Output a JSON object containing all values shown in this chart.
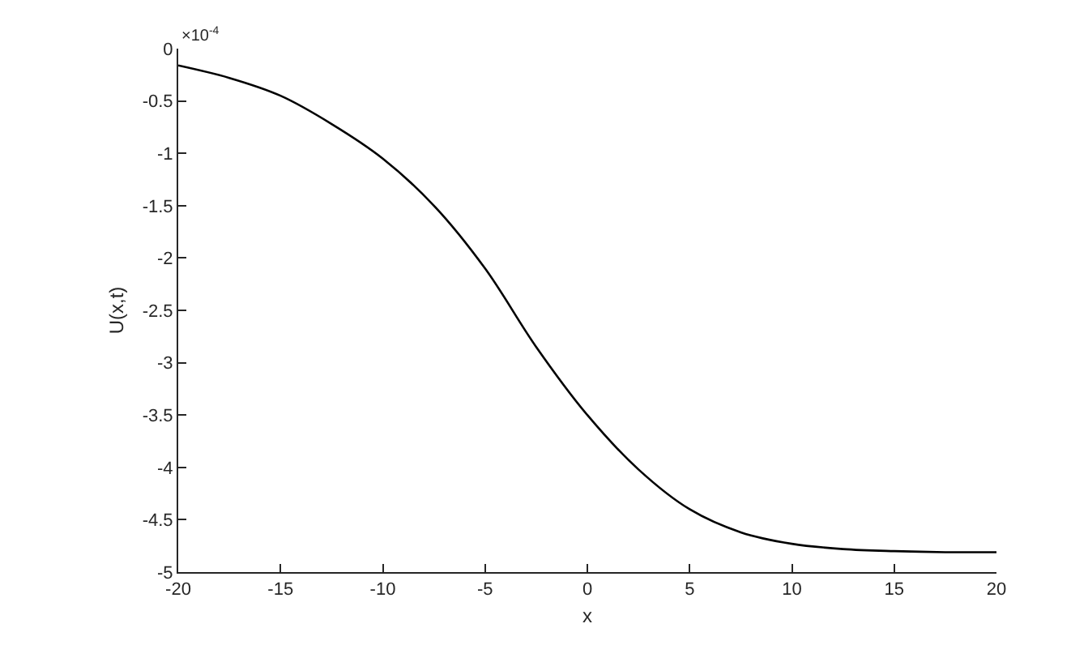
{
  "chart_data": {
    "type": "line",
    "xlabel": "x",
    "ylabel": "U(x,t)",
    "annotations": [
      "×10$^{-4}$"
    ],
    "x": [
      -20,
      -17.5,
      -15,
      -12.5,
      -10,
      -7.5,
      -5,
      -2.5,
      0,
      2.5,
      5,
      7.5,
      10,
      12.5,
      15,
      17.5,
      20
    ],
    "series": [
      {
        "color": "#000000",
        "values": [
          -0.16,
          -0.28,
          -0.45,
          -0.72,
          -1.05,
          -1.5,
          -2.1,
          -2.85,
          -3.5,
          -4.02,
          -4.4,
          -4.62,
          -4.73,
          -4.78,
          -4.8,
          -4.81,
          -4.81
        ]
      }
    ],
    "xlim": [
      -20,
      20
    ],
    "xticks": [
      -20,
      -15,
      -10,
      -5,
      0,
      5,
      10,
      15,
      20
    ],
    "ylim": [
      -5,
      0
    ],
    "yticks": [
      -5,
      -4.5,
      -4,
      -3.5,
      -3,
      -2.5,
      -2,
      -1.5,
      -1,
      -0.5,
      0
    ],
    "legend": false,
    "marker": "none",
    "line_style": "solid"
  }
}
